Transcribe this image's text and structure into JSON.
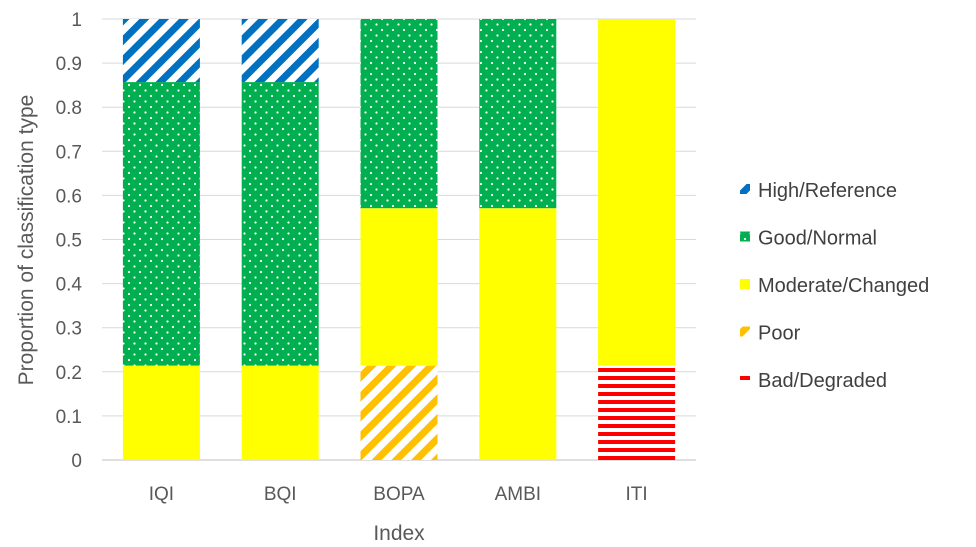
{
  "chart_data": {
    "type": "bar",
    "stacked": true,
    "categories": [
      "IQI",
      "BQI",
      "BOPA",
      "AMBI",
      "ITI"
    ],
    "xlabel": "Index",
    "ylabel": "Proportion of classification type",
    "ylim": [
      0,
      1
    ],
    "yticks": [
      "0",
      "0.1",
      "0.2",
      "0.3",
      "0.4",
      "0.5",
      "0.6",
      "0.7",
      "0.8",
      "0.9",
      "1"
    ],
    "grid": true,
    "legend_position": "right",
    "series": [
      {
        "name": "Bad/Degraded",
        "color": "#ff0000",
        "pattern": "horizontal-stripes",
        "values": [
          0,
          0,
          0,
          0,
          0.214
        ]
      },
      {
        "name": "Poor",
        "color": "#ffc000",
        "pattern": "diagonal-stripes",
        "values": [
          0,
          0,
          0.214,
          0,
          0
        ]
      },
      {
        "name": "Moderate/Changed",
        "color": "#ffff00",
        "pattern": "solid",
        "values": [
          0.214,
          0.214,
          0.357,
          0.571,
          0.786
        ]
      },
      {
        "name": "Good/Normal",
        "color": "#00b050",
        "pattern": "dots",
        "values": [
          0.643,
          0.643,
          0.429,
          0.429,
          0
        ]
      },
      {
        "name": "High/Reference",
        "color": "#0070c0",
        "pattern": "diagonal-stripes",
        "values": [
          0.143,
          0.143,
          0,
          0,
          0
        ]
      }
    ],
    "legend_order": [
      "High/Reference",
      "Good/Normal",
      "Moderate/Changed",
      "Poor",
      "Bad/Degraded"
    ]
  }
}
